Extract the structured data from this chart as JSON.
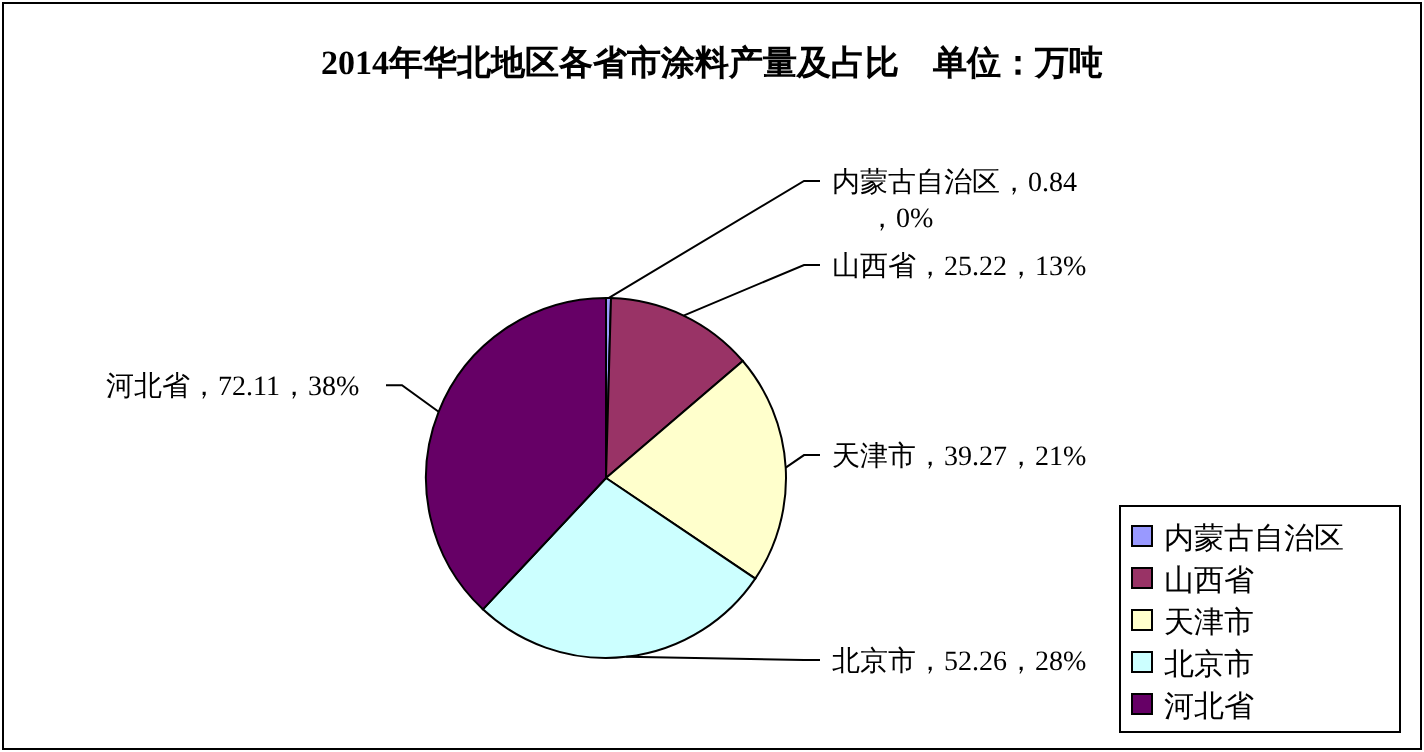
{
  "chart_data": {
    "type": "pie",
    "title": "2014年华北地区各省市涂料产量及占比　单位：万吨",
    "categories": [
      "内蒙古自治区",
      "山西省",
      "天津市",
      "北京市",
      "河北省"
    ],
    "values": [
      0.84,
      25.22,
      39.27,
      52.26,
      72.11
    ],
    "colors": [
      "#9999ff",
      "#993366",
      "#ffffcc",
      "#ccffff",
      "#660066"
    ],
    "value_labels": [
      "内蒙古自治区，0.84，0%",
      "山西省，25.22，13%",
      "天津市，39.27，21%",
      "北京市，52.26，28%",
      "河北省，72.11，38%"
    ],
    "legend": "bottom right"
  }
}
